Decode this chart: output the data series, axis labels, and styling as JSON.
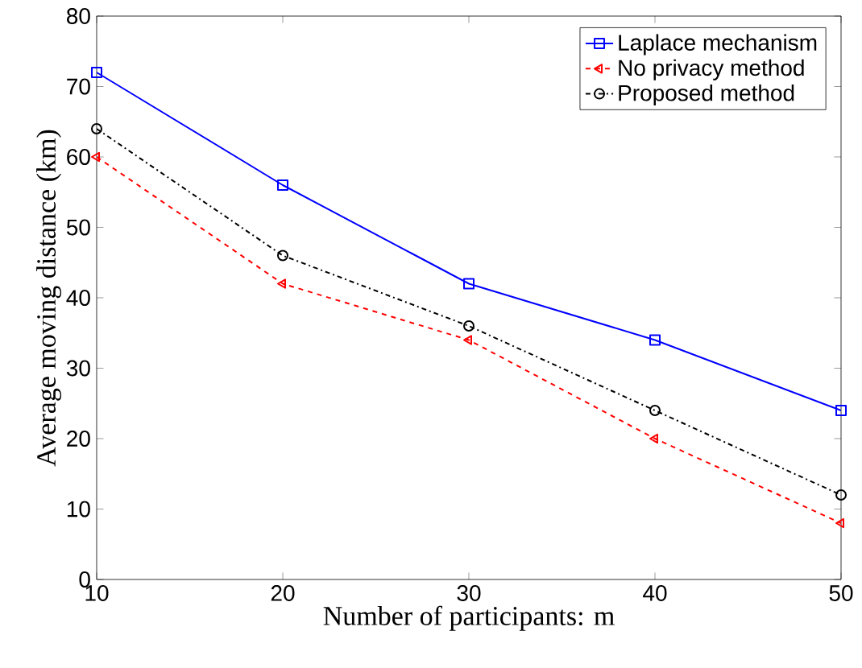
{
  "chart_data": {
    "type": "line",
    "xlabel": "Number of participants: m",
    "ylabel": "Average moving distance (km)",
    "x": [
      10,
      20,
      30,
      40,
      50
    ],
    "series": [
      {
        "name": "Laplace mechanism",
        "color": "#0000ff",
        "values": [
          72,
          56,
          42,
          34,
          24
        ],
        "marker": "square",
        "line_style": "solid"
      },
      {
        "name": "No privacy method",
        "color": "#ff0000",
        "values": [
          60,
          42,
          34,
          20,
          8
        ],
        "marker": "triangle",
        "line_style": "dashed"
      },
      {
        "name": "Proposed method",
        "color": "#000000",
        "values": [
          64,
          46,
          36,
          24,
          12
        ],
        "marker": "circle",
        "line_style": "dashdot"
      }
    ],
    "xlim": [
      10,
      50
    ],
    "ylim": [
      0,
      80
    ],
    "xticks": [
      10,
      20,
      30,
      40,
      50
    ],
    "yticks": [
      0,
      10,
      20,
      30,
      40,
      50,
      60,
      70,
      80
    ],
    "grid": false,
    "legend": "top right"
  }
}
